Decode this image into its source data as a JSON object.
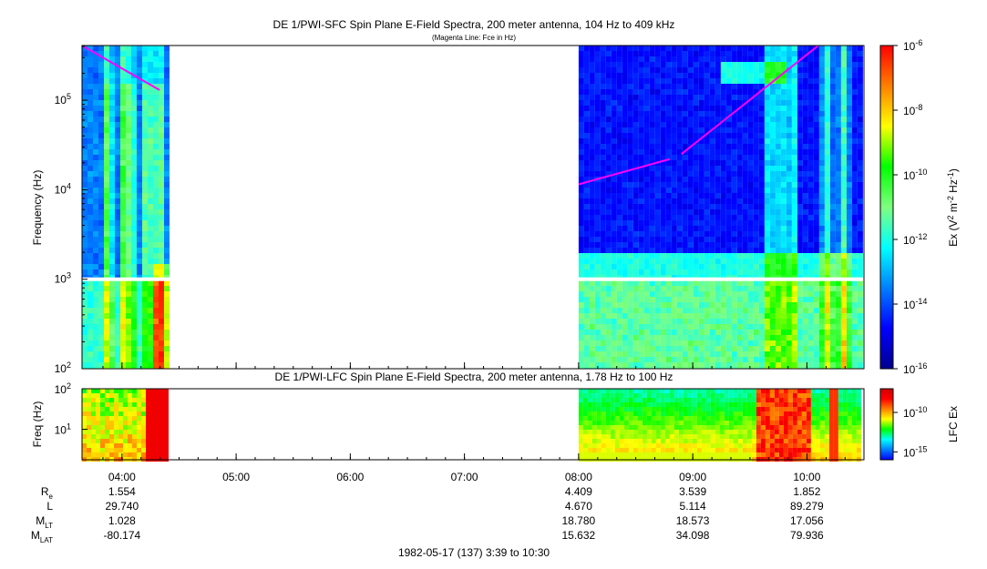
{
  "chart_data": [
    {
      "type": "heatmap",
      "title": "DE 1/PWI-SFC  Spin Plane E-Field Spectra, 200 meter antenna, 104 Hz to 409 kHz",
      "subtitle": "(Magenta Line: Fce in Hz)",
      "ylabel": "Frequency (Hz)",
      "y_scale": "log",
      "ylim": [
        100,
        409000
      ],
      "y_ticks": [
        {
          "value": 100,
          "base": "10",
          "exp": "2"
        },
        {
          "value": 1000,
          "base": "10",
          "exp": "3"
        },
        {
          "value": 10000,
          "base": "10",
          "exp": "4"
        },
        {
          "value": 100000,
          "base": "10",
          "exp": "5"
        }
      ],
      "x_range_hours": [
        3.65,
        10.5
      ],
      "data_intervals_hours": [
        [
          3.65,
          4.37
        ],
        [
          8.0,
          10.47
        ]
      ],
      "colorbar": {
        "label": "Ex (V",
        "label_sup1": "2",
        "label_mid": " m",
        "label_sup2": "-2",
        "label_end": " Hz",
        "label_sup3": "-1",
        "label_close": ")",
        "scale": "log",
        "range": [
          1e-16,
          1e-06
        ],
        "ticks": [
          {
            "value": 1e-06,
            "exp": "-6"
          },
          {
            "value": 1e-08,
            "exp": "-8"
          },
          {
            "value": 1e-10,
            "exp": "-10"
          },
          {
            "value": 1e-12,
            "exp": "-12"
          },
          {
            "value": 1e-14,
            "exp": "-14"
          },
          {
            "value": 1e-16,
            "exp": "-16"
          }
        ],
        "colors": [
          "#00008f",
          "#0000ff",
          "#007fff",
          "#00ffff",
          "#7fff7f",
          "#00ff00",
          "#ffff00",
          "#ff7f00",
          "#ff0000"
        ]
      },
      "fce_line": {
        "color": "#ff00ff",
        "segments": [
          {
            "t": [
              3.65,
              4.33
            ],
            "f": [
              409000,
              130000
            ]
          },
          {
            "t": [
              8.0,
              8.8
            ],
            "f": [
              11500,
              22000
            ]
          },
          {
            "t": [
              8.9,
              10.1
            ],
            "f": [
              25000,
              409000
            ]
          }
        ]
      }
    },
    {
      "type": "heatmap",
      "title": "DE 1/PWI-LFC  Spin Plane E-Field Spectra, 200 meter antenna, 1.78 Hz to 100 Hz",
      "ylabel": "Freq (Hz)",
      "y_scale": "log",
      "ylim": [
        1.78,
        100
      ],
      "y_ticks": [
        {
          "value": 10,
          "base": "10",
          "exp": "1"
        },
        {
          "value": 100,
          "base": "10",
          "exp": "2"
        }
      ],
      "x_range_hours": [
        3.65,
        10.5
      ],
      "data_intervals_hours": [
        [
          3.65,
          4.37
        ],
        [
          8.0,
          10.47
        ]
      ],
      "colorbar": {
        "label": "LFC Ex",
        "scale": "log",
        "range": [
          1e-16,
          1e-07
        ],
        "ticks": [
          {
            "value": 1e-10,
            "exp": "-10"
          },
          {
            "value": 1e-15,
            "exp": "-15"
          }
        ],
        "colors": [
          "#0000ff",
          "#007fff",
          "#00ffff",
          "#00ff00",
          "#ffff00",
          "#ff7f00",
          "#ff0000",
          "#cf0000"
        ]
      }
    }
  ],
  "x_axis": {
    "ticks": [
      {
        "hour": 4,
        "label": "04:00"
      },
      {
        "hour": 5,
        "label": "05:00"
      },
      {
        "hour": 6,
        "label": "06:00"
      },
      {
        "hour": 7,
        "label": "07:00"
      },
      {
        "hour": 8,
        "label": "08:00"
      },
      {
        "hour": 9,
        "label": "09:00"
      },
      {
        "hour": 10,
        "label": "10:00"
      }
    ],
    "minor_step_hours": 0.1667
  },
  "ephemeris": {
    "rows": [
      {
        "label": "R",
        "sub": "e",
        "values": [
          "1.554",
          "",
          "",
          "",
          "4.409",
          "3.539",
          "1.852"
        ]
      },
      {
        "label": "L",
        "sub": "",
        "values": [
          "29.740",
          "",
          "",
          "",
          "4.670",
          "5.114",
          "89.279"
        ]
      },
      {
        "label": "M",
        "sub": "LT",
        "values": [
          "1.028",
          "",
          "",
          "",
          "18.780",
          "18.573",
          "17.056"
        ]
      },
      {
        "label": "M",
        "sub": "LAT",
        "values": [
          "-80.174",
          "",
          "",
          "",
          "15.632",
          "34.098",
          "79.936"
        ]
      }
    ]
  },
  "footer": "1982-05-17 (137) 3:39 to 10:30"
}
